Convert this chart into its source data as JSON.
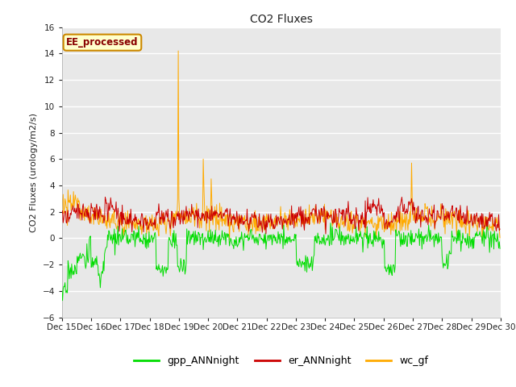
{
  "title": "CO2 Fluxes",
  "ylabel": "CO2 Fluxes (urology/m2/s)",
  "ylim": [
    -6,
    16
  ],
  "yticks": [
    -6,
    -4,
    -2,
    0,
    2,
    4,
    6,
    8,
    10,
    12,
    14,
    16
  ],
  "fig_bg": "#ffffff",
  "plot_bg": "#e8e8e8",
  "grid_color": "#f5f5f5",
  "annotation_text": "EE_processed",
  "annotation_bg": "#ffffcc",
  "annotation_border": "#cc8800",
  "line_colors": {
    "gpp": "#00dd00",
    "er": "#cc0000",
    "wc": "#ffaa00"
  },
  "legend_labels": [
    "gpp_ANNnight",
    "er_ANNnight",
    "wc_gf"
  ],
  "n_days": 15,
  "pts_per_day": 48,
  "x_tick_labels": [
    "Dec 15",
    "Dec 16",
    "Dec 17",
    "Dec 18",
    "Dec 19",
    "Dec 20",
    "Dec 21",
    "Dec 22",
    "Dec 23",
    "Dec 24",
    "Dec 25",
    "Dec 26",
    "Dec 27",
    "Dec 28",
    "Dec 29",
    "Dec 30"
  ]
}
